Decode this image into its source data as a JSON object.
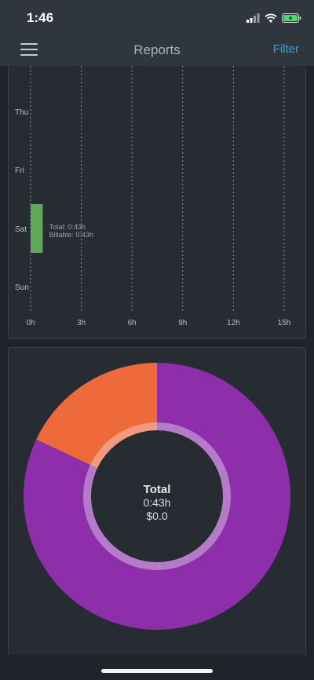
{
  "status_bar": {
    "time": "1:46"
  },
  "nav": {
    "title": "Reports",
    "filter_label": "Filter"
  },
  "colors": {
    "background": "#1f242a",
    "panel": "#262c32",
    "accent": "#3b9de0",
    "bar_green": "#5fa85a",
    "pie_purple": "#8e2eaa",
    "pie_orange": "#ee6a3b"
  },
  "chart_data": [
    {
      "type": "bar",
      "orientation": "horizontal",
      "categories": [
        "Thu",
        "Fri",
        "Sat",
        "Sun"
      ],
      "x_ticks": [
        "0h",
        "3h",
        "6h",
        "9h",
        "12h",
        "15h"
      ],
      "xlim": [
        0,
        15
      ],
      "grid": true,
      "series": [
        {
          "values": [
            0,
            0,
            0.717,
            0
          ]
        }
      ],
      "annotations": [
        {
          "category": "Sat",
          "lines": [
            "Total: 0:43h",
            "Billable: 0:43h"
          ]
        }
      ]
    },
    {
      "type": "pie",
      "donut": true,
      "slices": [
        {
          "share": 0.82,
          "color": "#8e2eaa",
          "inner_color": "#b57ac9"
        },
        {
          "share": 0.18,
          "color": "#ee6a3b",
          "inner_color": "#f19a80"
        }
      ],
      "center": {
        "title": "Total",
        "duration": "0:43h",
        "amount": "$0.0"
      }
    }
  ]
}
